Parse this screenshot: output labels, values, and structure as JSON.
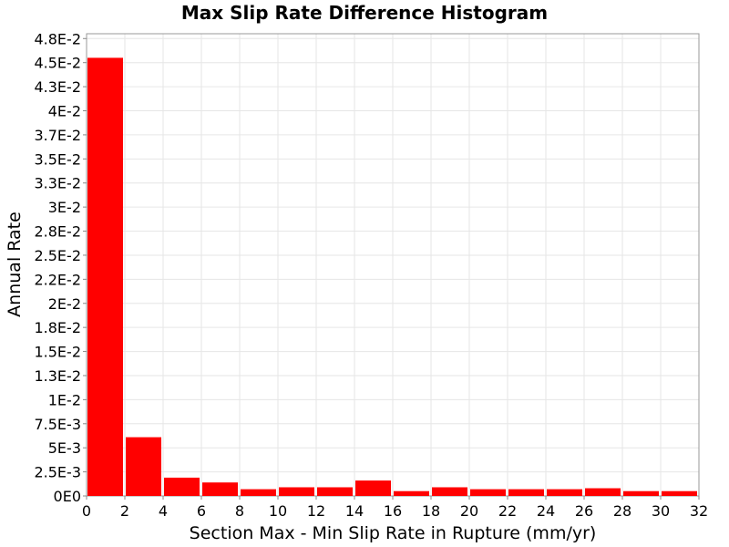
{
  "chart_data": {
    "type": "bar",
    "title": "Max Slip Rate Difference Histogram",
    "xlabel": "Section Max - Min Slip Rate in Rupture (mm/yr)",
    "ylabel": "Annual Rate",
    "xlim": [
      0,
      32
    ],
    "ylim": [
      0,
      0.048
    ],
    "grid": true,
    "legend": "none",
    "bar_color": "#ff0000",
    "x_ticks": [
      {
        "value": 0,
        "label": "0"
      },
      {
        "value": 2,
        "label": "2"
      },
      {
        "value": 4,
        "label": "4"
      },
      {
        "value": 6,
        "label": "6"
      },
      {
        "value": 8,
        "label": "8"
      },
      {
        "value": 10,
        "label": "10"
      },
      {
        "value": 12,
        "label": "12"
      },
      {
        "value": 14,
        "label": "14"
      },
      {
        "value": 16,
        "label": "16"
      },
      {
        "value": 18,
        "label": "18"
      },
      {
        "value": 20,
        "label": "20"
      },
      {
        "value": 22,
        "label": "22"
      },
      {
        "value": 24,
        "label": "24"
      },
      {
        "value": 26,
        "label": "26"
      },
      {
        "value": 28,
        "label": "28"
      },
      {
        "value": 30,
        "label": "30"
      },
      {
        "value": 32,
        "label": "32"
      }
    ],
    "y_ticks": [
      {
        "value": 0,
        "label": "0E0"
      },
      {
        "value": 0.0025,
        "label": "2.5E-3"
      },
      {
        "value": 0.005,
        "label": "5E-3"
      },
      {
        "value": 0.0075,
        "label": "7.5E-3"
      },
      {
        "value": 0.01,
        "label": "1E-2"
      },
      {
        "value": 0.0125,
        "label": "1.3E-2"
      },
      {
        "value": 0.015,
        "label": "1.5E-2"
      },
      {
        "value": 0.0175,
        "label": "1.8E-2"
      },
      {
        "value": 0.02,
        "label": "2E-2"
      },
      {
        "value": 0.0225,
        "label": "2.2E-2"
      },
      {
        "value": 0.025,
        "label": "2.5E-2"
      },
      {
        "value": 0.0275,
        "label": "2.8E-2"
      },
      {
        "value": 0.03,
        "label": "3E-2"
      },
      {
        "value": 0.0325,
        "label": "3.3E-2"
      },
      {
        "value": 0.035,
        "label": "3.5E-2"
      },
      {
        "value": 0.0375,
        "label": "3.7E-2"
      },
      {
        "value": 0.04,
        "label": "4E-2"
      },
      {
        "value": 0.0425,
        "label": "4.3E-2"
      },
      {
        "value": 0.045,
        "label": "4.5E-2"
      },
      {
        "value": 0.0475,
        "label": "4.8E-2"
      }
    ],
    "bins": [
      {
        "x0": 0,
        "x1": 2,
        "value": 0.0455
      },
      {
        "x0": 2,
        "x1": 4,
        "value": 0.0061
      },
      {
        "x0": 4,
        "x1": 6,
        "value": 0.0019
      },
      {
        "x0": 6,
        "x1": 8,
        "value": 0.0014
      },
      {
        "x0": 8,
        "x1": 10,
        "value": 0.0007
      },
      {
        "x0": 10,
        "x1": 12,
        "value": 0.0009
      },
      {
        "x0": 12,
        "x1": 14,
        "value": 0.0009
      },
      {
        "x0": 14,
        "x1": 16,
        "value": 0.0016
      },
      {
        "x0": 16,
        "x1": 18,
        "value": 0.0005
      },
      {
        "x0": 18,
        "x1": 20,
        "value": 0.0009
      },
      {
        "x0": 20,
        "x1": 22,
        "value": 0.0007
      },
      {
        "x0": 22,
        "x1": 24,
        "value": 0.0007
      },
      {
        "x0": 24,
        "x1": 26,
        "value": 0.0007
      },
      {
        "x0": 26,
        "x1": 28,
        "value": 0.0008
      },
      {
        "x0": 28,
        "x1": 30,
        "value": 0.0005
      },
      {
        "x0": 30,
        "x1": 32,
        "value": 0.0005
      }
    ]
  }
}
